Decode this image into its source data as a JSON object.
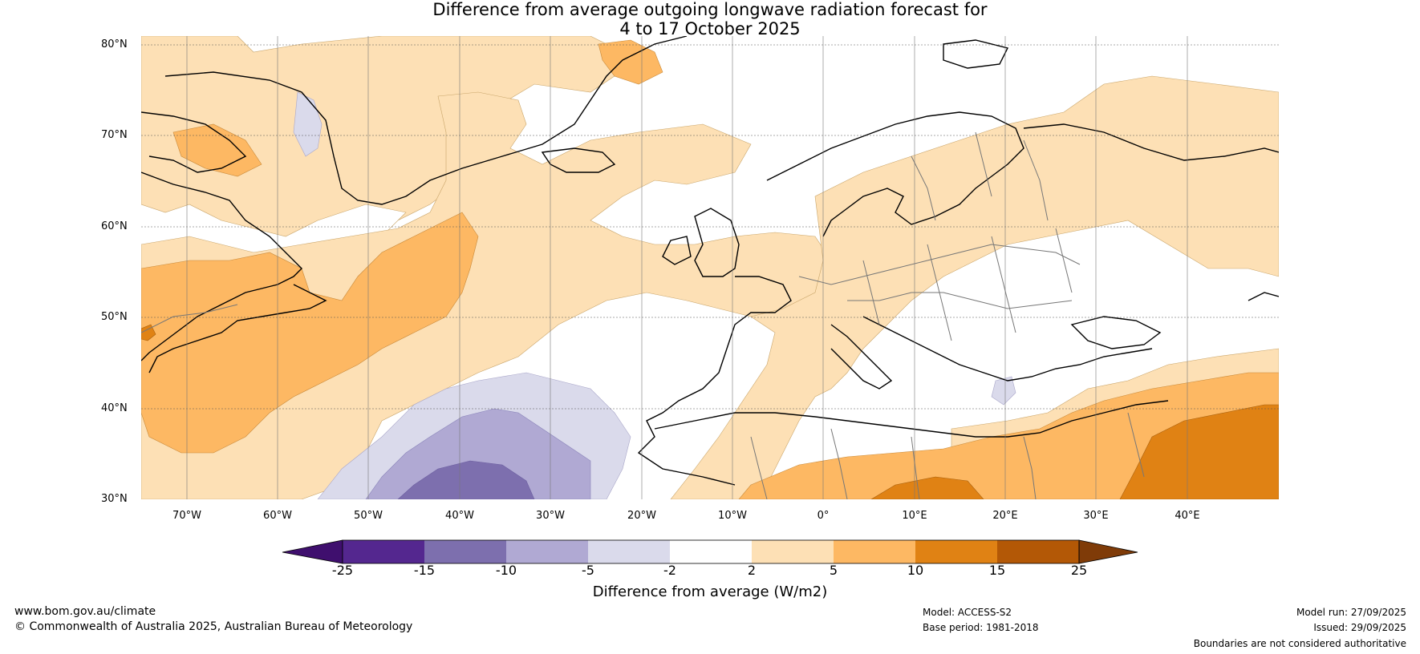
{
  "title_line1": "Difference from average outgoing longwave radiation forecast for",
  "title_line2": "4 to 17 October 2025",
  "lat_labels": [
    "80°N",
    "70°N",
    "60°N",
    "50°N",
    "40°N",
    "30°N"
  ],
  "lon_labels": [
    "70°W",
    "60°W",
    "50°W",
    "40°W",
    "30°W",
    "20°W",
    "10°W",
    "0°",
    "10°E",
    "20°E",
    "30°E",
    "40°E"
  ],
  "colorbar": {
    "label": "Difference from average (W/m2)",
    "ticks": [
      "-25",
      "-15",
      "-10",
      "-5",
      "-2",
      "2",
      "5",
      "10",
      "15",
      "25"
    ],
    "colors": [
      "#3f0f6e",
      "#54278f",
      "#7d6fae",
      "#b0a9d3",
      "#dadaeb",
      "#ffffff",
      "#fde0b5",
      "#fdb863",
      "#e08214",
      "#b35806",
      "#7f3b08"
    ]
  },
  "footer": {
    "website": "www.bom.gov.au/climate",
    "copyright": "© Commonwealth of Australia 2025, Australian Bureau of Meteorology",
    "model": "Model: ACCESS-S2",
    "base_period": "Base period: 1981-2018",
    "model_run": "Model run: 27/09/2025",
    "issued": "Issued: 29/09/2025",
    "disclaimer": "Boundaries are not considered authoritative"
  }
}
